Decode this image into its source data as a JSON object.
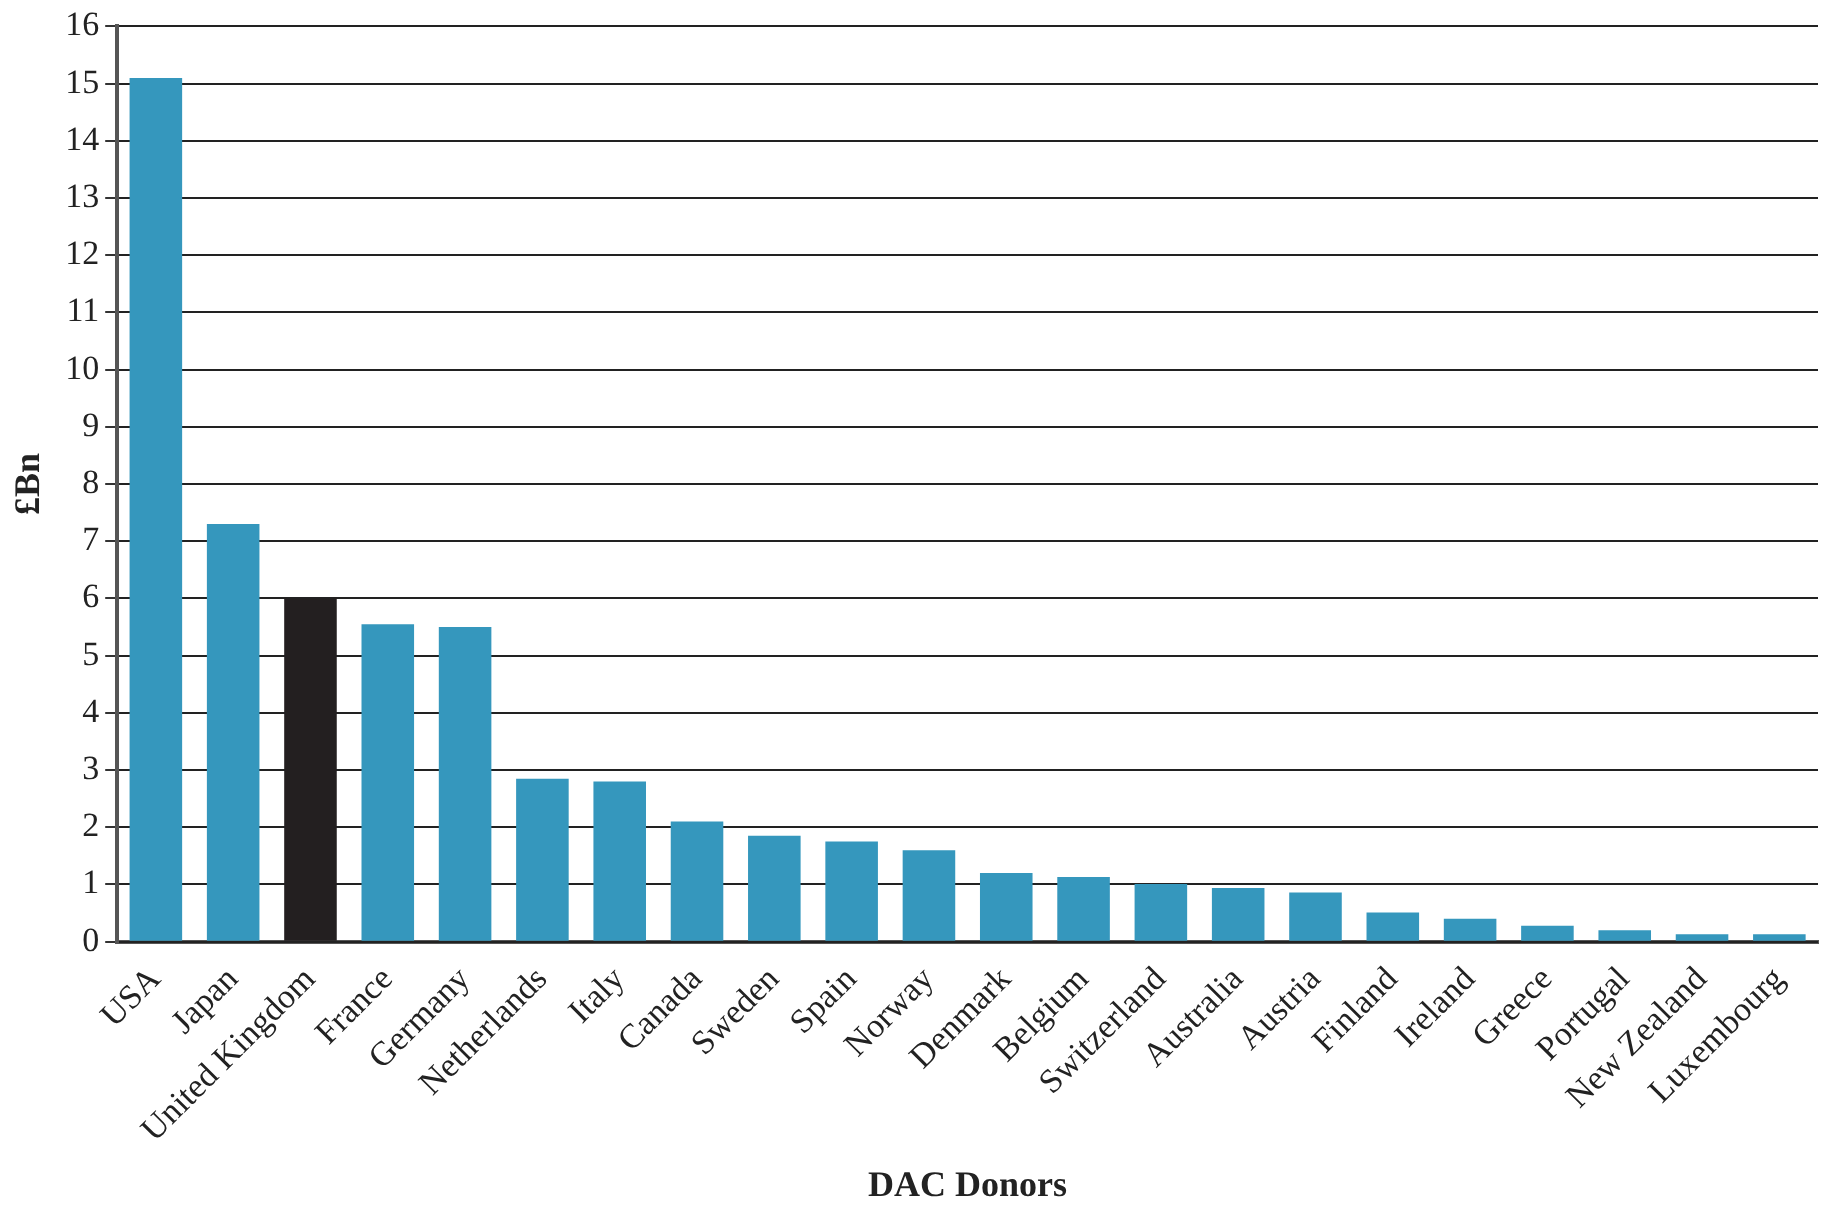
{
  "chart_data": {
    "type": "bar",
    "xlabel": "DAC Donors",
    "ylabel": "£Bn",
    "categories": [
      "USA",
      "Japan",
      "United Kingdom",
      "France",
      "Germany",
      "Netherlands",
      "Italy",
      "Canada",
      "Sweden",
      "Spain",
      "Norway",
      "Denmark",
      "Belgium",
      "Switzerland",
      "Australia",
      "Austria",
      "Finland",
      "Ireland",
      "Greece",
      "Portugal",
      "New Zealand",
      "Luxembourg"
    ],
    "values": [
      15.1,
      7.3,
      6.0,
      5.55,
      5.5,
      2.85,
      2.8,
      2.1,
      1.85,
      1.75,
      1.6,
      1.2,
      1.13,
      1.01,
      0.94,
      0.86,
      0.51,
      0.4,
      0.28,
      0.2,
      0.13,
      0.13
    ],
    "colors": [
      "#3597bd",
      "#3597bd",
      "#231f20",
      "#3597bd",
      "#3597bd",
      "#3597bd",
      "#3597bd",
      "#3597bd",
      "#3597bd",
      "#3597bd",
      "#3597bd",
      "#3597bd",
      "#3597bd",
      "#3597bd",
      "#3597bd",
      "#3597bd",
      "#3597bd",
      "#3597bd",
      "#3597bd",
      "#3597bd",
      "#3597bd",
      "#3597bd"
    ],
    "ylim": [
      0,
      16
    ],
    "yticks": [
      0,
      1,
      2,
      3,
      4,
      5,
      6,
      7,
      8,
      9,
      10,
      11,
      12,
      13,
      14,
      15,
      16
    ],
    "grid": "y"
  }
}
